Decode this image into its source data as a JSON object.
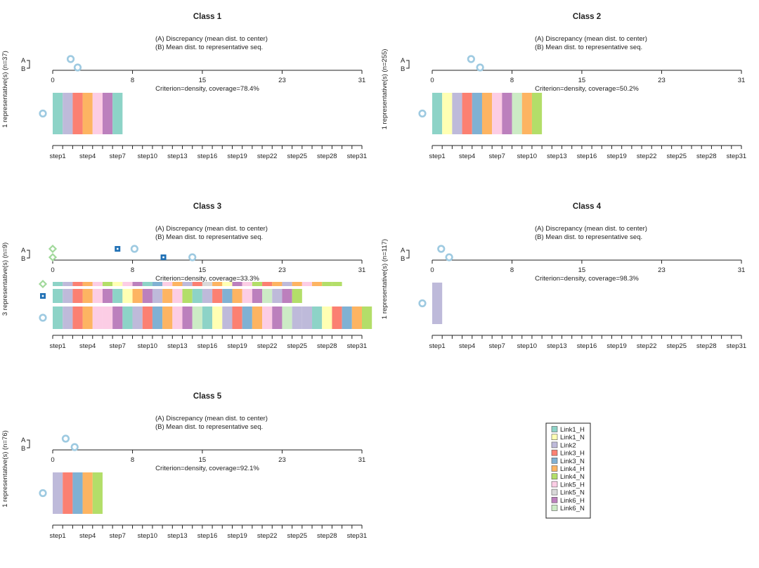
{
  "colors": {
    "Link1_H": "#8DD3C7",
    "Link1_N": "#FFFFB3",
    "Link2": "#BEBADA",
    "Link3_H": "#FB8072",
    "Link3_N": "#80B1D3",
    "Link4_H": "#FDB462",
    "Link4_N": "#B3DE69",
    "Link5_H": "#FCCDE5",
    "Link5_N": "#D9D9D9",
    "Link6_H": "#BC80BD",
    "Link6_N": "#CCEBC5",
    "marker_circle": "#9ecae1",
    "marker_square": "#2171b5",
    "marker_diamond": "#a1d99b"
  },
  "chart_data": {
    "type": "representative-sequence-plot",
    "legend_title": "",
    "legend": [
      "Link1_H",
      "Link1_N",
      "Link2",
      "Link3_H",
      "Link3_N",
      "Link4_H",
      "Link4_N",
      "Link5_H",
      "Link5_N",
      "Link6_H",
      "Link6_N"
    ],
    "top_axis": {
      "ticks": [
        0,
        8,
        15,
        23,
        31
      ],
      "range": [
        0,
        31
      ]
    },
    "step_ticks": [
      "step1",
      "step4",
      "step7",
      "step10",
      "step13",
      "step16",
      "step19",
      "step22",
      "step25",
      "step28",
      "step31"
    ],
    "subtitle_a": "(A) Discrepancy (mean dist. to center)",
    "subtitle_b": "(B) Mean dist. to representative seq.",
    "ab_labels": [
      "A",
      "B"
    ],
    "panels": [
      {
        "title": "Class 1",
        "ylabel": "1 representative(s) (n=37)",
        "criterion": "Criterion=density, coverage=78.4%",
        "a_values": [
          {
            "marker": "circle",
            "value": 1.8
          }
        ],
        "b_values": [
          {
            "marker": "circle",
            "value": 2.5
          }
        ],
        "representatives": [
          {
            "marker": "circle",
            "states": [
              "Link1_H",
              "Link2",
              "Link3_H",
              "Link4_H",
              "Link5_H",
              "Link6_H",
              "Link1_H"
            ]
          }
        ]
      },
      {
        "title": "Class 2",
        "ylabel": "1 representative(s) (n=255)",
        "criterion": "Criterion=density, coverage=50.2%",
        "a_values": [
          {
            "marker": "circle",
            "value": 3.9
          }
        ],
        "b_values": [
          {
            "marker": "circle",
            "value": 4.8
          }
        ],
        "representatives": [
          {
            "marker": "circle",
            "states": [
              "Link1_H",
              "Link1_N",
              "Link2",
              "Link3_H",
              "Link3_N",
              "Link4_H",
              "Link5_H",
              "Link6_H",
              "Link6_N",
              "Link4_H",
              "Link4_N"
            ]
          }
        ]
      },
      {
        "title": "Class 3",
        "ylabel": "3 representative(s) (n=9)",
        "criterion": "Criterion=density, coverage=33.3%",
        "a_values": [
          {
            "marker": "diamond",
            "value": 0
          },
          {
            "marker": "square",
            "value": 6.5
          },
          {
            "marker": "circle",
            "value": 8.2
          }
        ],
        "b_values": [
          {
            "marker": "diamond",
            "value": 0
          },
          {
            "marker": "square",
            "value": 11.1
          },
          {
            "marker": "circle",
            "value": 14.0
          }
        ],
        "representatives": [
          {
            "marker": "diamond",
            "states": [
              "Link1_H",
              "Link2",
              "Link3_H",
              "Link4_H",
              "Link5_H",
              "Link4_N",
              "Link1_N",
              "Link5_H",
              "Link6_H",
              "Link1_H",
              "Link3_N",
              "Link5_H",
              "Link4_H",
              "Link2",
              "Link3_H",
              "Link5_N",
              "Link4_H",
              "Link1_N",
              "Link6_H",
              "Link5_H",
              "Link4_N",
              "Link3_H",
              "Link4_H",
              "Link2",
              "Link4_H",
              "Link5_H",
              "Link4_H",
              "Link4_N",
              "Link4_N"
            ]
          },
          {
            "marker": "square",
            "states": [
              "Link1_H",
              "Link2",
              "Link3_H",
              "Link4_H",
              "Link5_H",
              "Link6_H",
              "Link1_H",
              "Link1_N",
              "Link4_H",
              "Link6_H",
              "Link2",
              "Link4_H",
              "Link5_H",
              "Link4_N",
              "Link1_H",
              "Link2",
              "Link3_H",
              "Link3_N",
              "Link4_H",
              "Link5_H",
              "Link6_H",
              "Link6_N",
              "Link2",
              "Link6_H",
              "Link4_N"
            ]
          },
          {
            "marker": "circle",
            "states": [
              "Link1_H",
              "Link2",
              "Link3_H",
              "Link4_H",
              "Link5_H",
              "Link5_H",
              "Link6_H",
              "Link1_H",
              "Link2",
              "Link3_H",
              "Link3_N",
              "Link4_H",
              "Link5_H",
              "Link6_H",
              "Link6_N",
              "Link1_H",
              "Link1_N",
              "Link2",
              "Link3_H",
              "Link3_N",
              "Link4_H",
              "Link5_H",
              "Link6_H",
              "Link6_N",
              "Link2",
              "Link2",
              "Link1_H",
              "Link1_N",
              "Link3_H",
              "Link3_N",
              "Link4_H",
              "Link4_N"
            ]
          }
        ]
      },
      {
        "title": "Class 4",
        "ylabel": "1 representative(s) (n=117)",
        "criterion": "Criterion=density, coverage=98.3%",
        "a_values": [
          {
            "marker": "circle",
            "value": 0.9
          }
        ],
        "b_values": [
          {
            "marker": "circle",
            "value": 1.7
          }
        ],
        "representatives": [
          {
            "marker": "circle",
            "states": [
              "Link2"
            ]
          }
        ]
      },
      {
        "title": "Class 5",
        "ylabel": "1 representative(s) (n=76)",
        "criterion": "Criterion=density, coverage=92.1%",
        "a_values": [
          {
            "marker": "circle",
            "value": 1.3
          }
        ],
        "b_values": [
          {
            "marker": "circle",
            "value": 2.2
          }
        ],
        "representatives": [
          {
            "marker": "circle",
            "states": [
              "Link2",
              "Link3_H",
              "Link3_N",
              "Link4_H",
              "Link4_N"
            ]
          }
        ]
      }
    ]
  }
}
